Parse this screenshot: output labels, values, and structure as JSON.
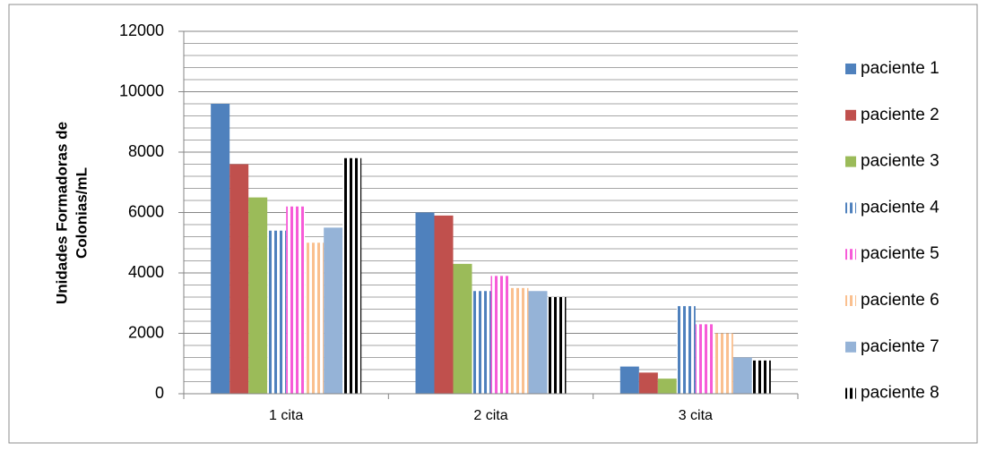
{
  "chart_data": {
    "type": "bar",
    "ylabel": [
      "Unidades Formadoras de",
      "Colonias/mL"
    ],
    "categories": [
      "1 cita",
      "2 cita",
      "3 cita"
    ],
    "series": [
      {
        "name": "paciente 1",
        "color": "#4f81bd",
        "pattern": "solid",
        "values": [
          9600,
          6000,
          900
        ]
      },
      {
        "name": "paciente 2",
        "color": "#c0504d",
        "pattern": "solid",
        "values": [
          7600,
          5900,
          700
        ]
      },
      {
        "name": "paciente 3",
        "color": "#9bbb59",
        "pattern": "solid",
        "values": [
          6500,
          4300,
          500
        ]
      },
      {
        "name": "paciente 4",
        "color": "#4f81bd",
        "pattern": "stripes",
        "values": [
          5400,
          3400,
          2900
        ]
      },
      {
        "name": "paciente 5",
        "color": "#f75bd8",
        "pattern": "stripes",
        "values": [
          6200,
          3900,
          2300
        ]
      },
      {
        "name": "paciente 6",
        "color": "#fac08f",
        "pattern": "stripes",
        "values": [
          5000,
          3500,
          2000
        ]
      },
      {
        "name": "paciente 7",
        "color": "#95b3d7",
        "pattern": "solid",
        "values": [
          5500,
          3400,
          1200
        ]
      },
      {
        "name": "paciente 8",
        "color": "#000000",
        "pattern": "stripes",
        "values": [
          7800,
          3200,
          1100
        ]
      }
    ],
    "ylim": [
      0,
      12000
    ],
    "yticks": [
      0,
      2000,
      4000,
      6000,
      8000,
      10000,
      12000
    ],
    "grid": true,
    "legend": "right"
  }
}
